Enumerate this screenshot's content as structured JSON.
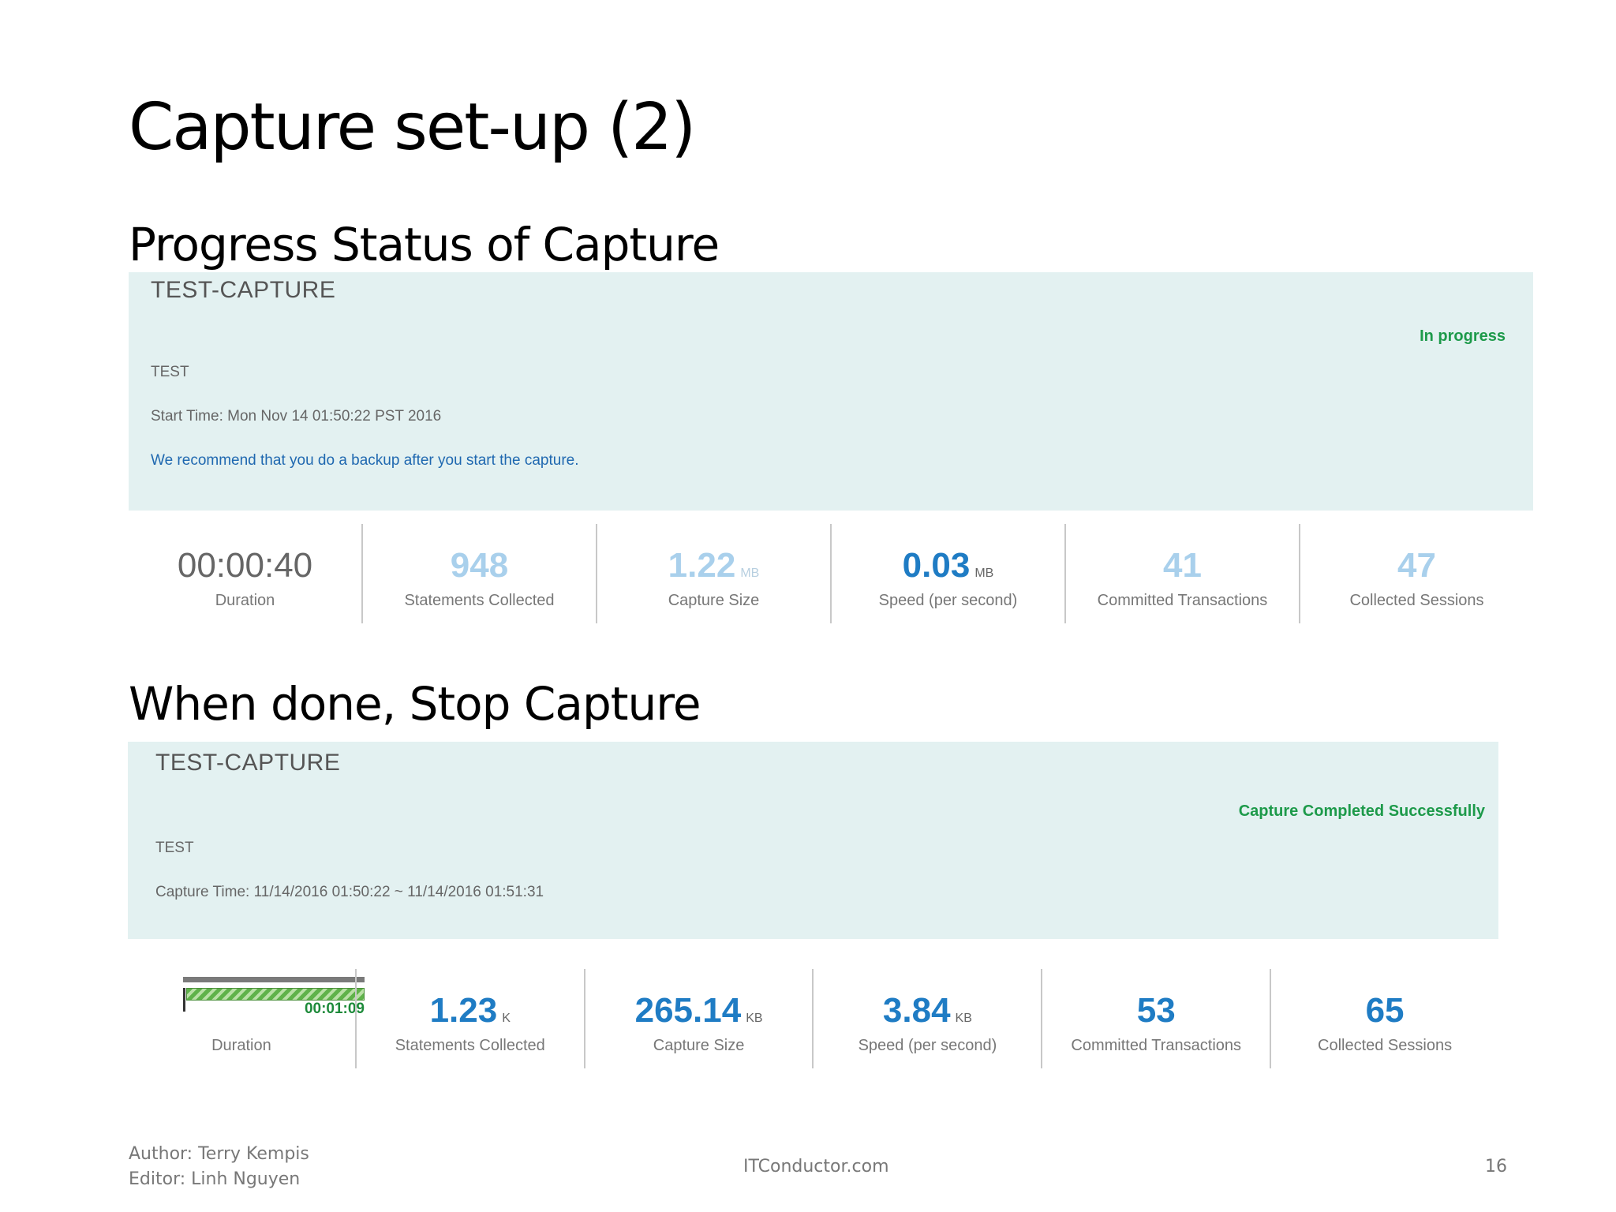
{
  "slide": {
    "title": "Capture set-up (2)",
    "heading_progress": "Progress Status of Capture",
    "heading_done": "When done, Stop Capture"
  },
  "progress_panel": {
    "name": "TEST-CAPTURE",
    "status": "In progress",
    "db": "TEST",
    "start_time": "Start Time: Mon Nov 14 01:50:22 PST 2016",
    "note": "We recommend that you do a backup after you start the capture.",
    "metrics": {
      "duration": {
        "value": "00:00:40",
        "label": "Duration"
      },
      "statements": {
        "value": "948",
        "label": "Statements Collected"
      },
      "size": {
        "value": "1.22",
        "unit": "MB",
        "label": "Capture Size"
      },
      "speed": {
        "value": "0.03",
        "unit": "MB",
        "label": "Speed (per second)"
      },
      "transactions": {
        "value": "41",
        "label": "Committed Transactions"
      },
      "sessions": {
        "value": "47",
        "label": "Collected Sessions"
      }
    }
  },
  "done_panel": {
    "name": "TEST-CAPTURE",
    "status": "Capture Completed Successfully",
    "db": "TEST",
    "capture_time": "Capture Time: 11/14/2016 01:50:22 ~ 11/14/2016 01:51:31",
    "metrics": {
      "duration": {
        "value": "00:01:09",
        "label": "Duration",
        "progress": 1.0
      },
      "statements": {
        "value": "1.23",
        "unit": "K",
        "label": "Statements Collected"
      },
      "size": {
        "value": "265.14",
        "unit": "KB",
        "label": "Capture Size"
      },
      "speed": {
        "value": "3.84",
        "unit": "KB",
        "label": "Speed (per second)"
      },
      "transactions": {
        "value": "53",
        "label": "Committed Transactions"
      },
      "sessions": {
        "value": "65",
        "label": "Collected Sessions"
      }
    }
  },
  "footer": {
    "author": "Author: Terry Kempis",
    "editor": "Editor: Linh Nguyen",
    "site": "ITConductor.com",
    "page_number": "16"
  },
  "colors": {
    "panel_bg": "#e3f1f1",
    "value_blue": "#1f7cc4",
    "status_green": "#1d9a4a"
  }
}
